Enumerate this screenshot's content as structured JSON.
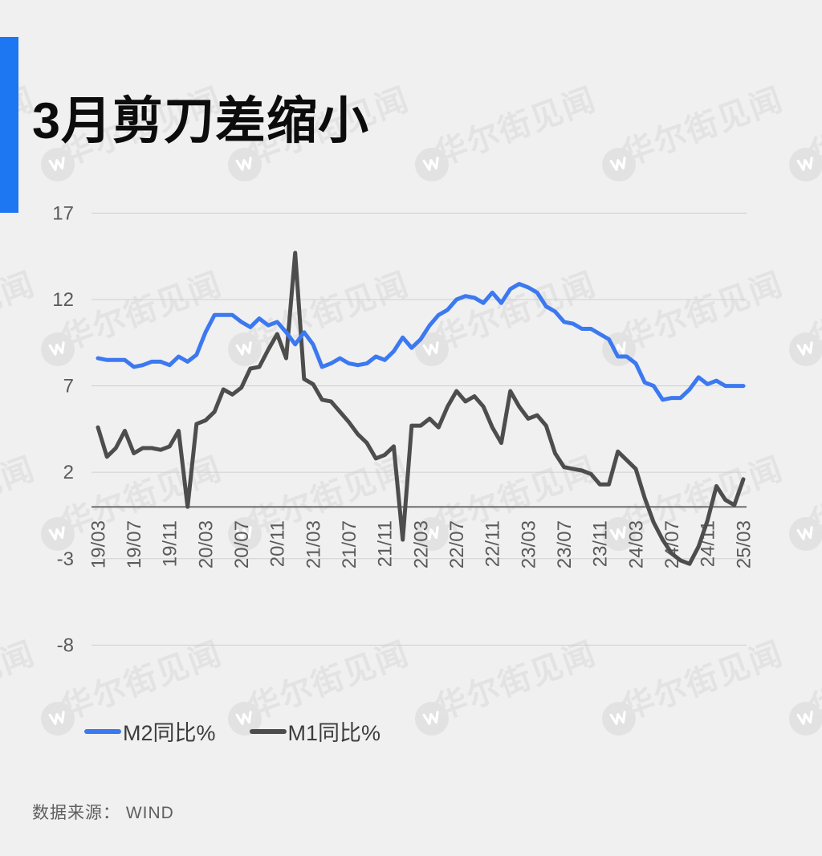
{
  "page": {
    "title": "3月剪刀差缩小",
    "source_label": "数据来源：  WIND"
  },
  "watermark": {
    "text": "华尔街见闻",
    "logo": "wscn-lightning-w-icon"
  },
  "colors": {
    "background": "#f0f0f1",
    "accent_bar": "#1d76f2",
    "m2_line": "#3c79f0",
    "m1_line": "#4d4d4d",
    "gridline": "#cfcfcf",
    "zero_axis": "#6f6f6f",
    "axis_label": "#5a5a5a"
  },
  "legend": [
    {
      "label": "M2同比%",
      "color": "#3c79f0"
    },
    {
      "label": "M1同比%",
      "color": "#4d4d4d"
    }
  ],
  "chart_data": {
    "type": "line",
    "title": "3月剪刀差缩小",
    "unit": "%",
    "grid": true,
    "legend_position": "bottom-left",
    "ylim": [
      -8,
      17
    ],
    "yticks": [
      17,
      12,
      7,
      2,
      -3,
      -8
    ],
    "x_tick_labels": [
      "19/03",
      "19/07",
      "19/11",
      "20/03",
      "20/07",
      "20/11",
      "21/03",
      "21/07",
      "21/11",
      "22/03",
      "22/07",
      "22/11",
      "23/03",
      "23/07",
      "23/11",
      "24/03",
      "24/07",
      "24/11",
      "25/03"
    ],
    "x": [
      "19/03",
      "19/04",
      "19/05",
      "19/06",
      "19/07",
      "19/08",
      "19/09",
      "19/10",
      "19/11",
      "19/12",
      "20/01",
      "20/02",
      "20/03",
      "20/04",
      "20/05",
      "20/06",
      "20/07",
      "20/08",
      "20/09",
      "20/10",
      "20/11",
      "20/12",
      "21/01",
      "21/02",
      "21/03",
      "21/04",
      "21/05",
      "21/06",
      "21/07",
      "21/08",
      "21/09",
      "21/10",
      "21/11",
      "21/12",
      "22/01",
      "22/02",
      "22/03",
      "22/04",
      "22/05",
      "22/06",
      "22/07",
      "22/08",
      "22/09",
      "22/10",
      "22/11",
      "22/12",
      "23/01",
      "23/02",
      "23/03",
      "23/04",
      "23/05",
      "23/06",
      "23/07",
      "23/08",
      "23/09",
      "23/10",
      "23/11",
      "23/12",
      "24/01",
      "24/02",
      "24/03",
      "24/04",
      "24/05",
      "24/06",
      "24/07",
      "24/08",
      "24/09",
      "24/10",
      "24/11",
      "24/12",
      "25/01",
      "25/02",
      "25/03"
    ],
    "series": [
      {
        "name": "M2同比%",
        "color": "#3c79f0",
        "values": [
          8.6,
          8.5,
          8.5,
          8.5,
          8.1,
          8.2,
          8.4,
          8.4,
          8.2,
          8.7,
          8.4,
          8.8,
          10.1,
          11.1,
          11.1,
          11.1,
          10.7,
          10.4,
          10.9,
          10.5,
          10.7,
          10.1,
          9.4,
          10.1,
          9.4,
          8.1,
          8.3,
          8.6,
          8.3,
          8.2,
          8.3,
          8.7,
          8.5,
          9.0,
          9.8,
          9.2,
          9.7,
          10.5,
          11.1,
          11.4,
          12.0,
          12.2,
          12.1,
          11.8,
          12.4,
          11.8,
          12.6,
          12.9,
          12.7,
          12.4,
          11.6,
          11.3,
          10.7,
          10.6,
          10.3,
          10.3,
          10.0,
          9.7,
          8.7,
          8.7,
          8.3,
          7.2,
          7.0,
          6.2,
          6.3,
          6.3,
          6.8,
          7.5,
          7.1,
          7.3,
          7.0,
          7.0,
          7.0
        ]
      },
      {
        "name": "M1同比%",
        "color": "#4d4d4d",
        "values": [
          4.6,
          2.9,
          3.4,
          4.4,
          3.1,
          3.4,
          3.4,
          3.3,
          3.5,
          4.4,
          0.0,
          4.8,
          5.0,
          5.5,
          6.8,
          6.5,
          6.9,
          8.0,
          8.1,
          9.1,
          10.0,
          8.6,
          14.7,
          7.4,
          7.1,
          6.2,
          6.1,
          5.5,
          4.9,
          4.2,
          3.7,
          2.8,
          3.0,
          3.5,
          -1.9,
          4.7,
          4.7,
          5.1,
          4.6,
          5.8,
          6.7,
          6.1,
          6.4,
          5.8,
          4.6,
          3.7,
          6.7,
          5.8,
          5.1,
          5.3,
          4.7,
          3.1,
          2.3,
          2.2,
          2.1,
          1.9,
          1.3,
          1.3,
          3.2,
          2.7,
          2.2,
          0.5,
          -0.9,
          -1.9,
          -2.7,
          -3.1,
          -3.3,
          -2.3,
          -0.8,
          1.2,
          0.4,
          0.1,
          1.6
        ]
      }
    ]
  }
}
